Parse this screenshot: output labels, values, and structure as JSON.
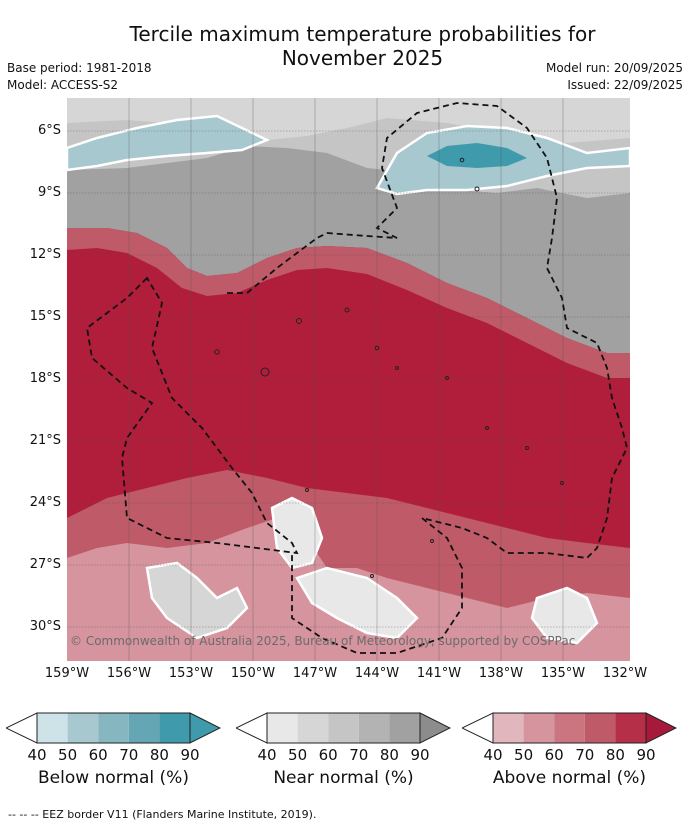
{
  "header": {
    "title_line1": "Tercile maximum temperature probabilities for",
    "title_line2": "November 2025",
    "base_period": "Base period: 1981-2018",
    "model": "Model: ACCESS-S2",
    "model_run": "Model run: 20/09/2025",
    "issued": "Issued: 22/09/2025"
  },
  "map": {
    "lat_labels": [
      "6°S",
      "9°S",
      "12°S",
      "15°S",
      "18°S",
      "21°S",
      "24°S",
      "27°S",
      "30°S"
    ],
    "lon_labels": [
      "159°W",
      "156°W",
      "153°W",
      "150°W",
      "147°W",
      "144°W",
      "141°W",
      "138°W",
      "135°W",
      "132°W"
    ],
    "copyright": "© Commonwealth of Australia 2025, Bureau of Meteorology, supported by COSPPac"
  },
  "legends": [
    {
      "title": "Below normal (%)",
      "ticks": [
        "40",
        "50",
        "60",
        "70",
        "80",
        "90"
      ],
      "colors": [
        "#cde3e8",
        "#a7c8cf",
        "#86b6c0",
        "#64a6b3",
        "#3f9aab"
      ]
    },
    {
      "title": "Near normal (%)",
      "ticks": [
        "40",
        "50",
        "60",
        "70",
        "80",
        "90"
      ],
      "colors": [
        "#e8e8e8",
        "#d6d6d6",
        "#c5c5c5",
        "#b3b3b3",
        "#a1a1a1"
      ]
    },
    {
      "title": "Above normal (%)",
      "ticks": [
        "40",
        "50",
        "60",
        "70",
        "80",
        "90"
      ],
      "colors": [
        "#e2b6bd",
        "#d5949e",
        "#ca7580",
        "#bf5a68",
        "#b42f47"
      ]
    }
  ],
  "footer": {
    "eez_note": "--  --  -- EEZ border V11 (Flanders Marine Institute, 2019)."
  },
  "colors": {
    "above_90": "#b01e3c",
    "above_80": "#b42f47",
    "above_70": "#bf5a68",
    "near_70": "#b3b3b3",
    "near_60": "#a1a1a1",
    "below_max": "#3f9aab"
  }
}
